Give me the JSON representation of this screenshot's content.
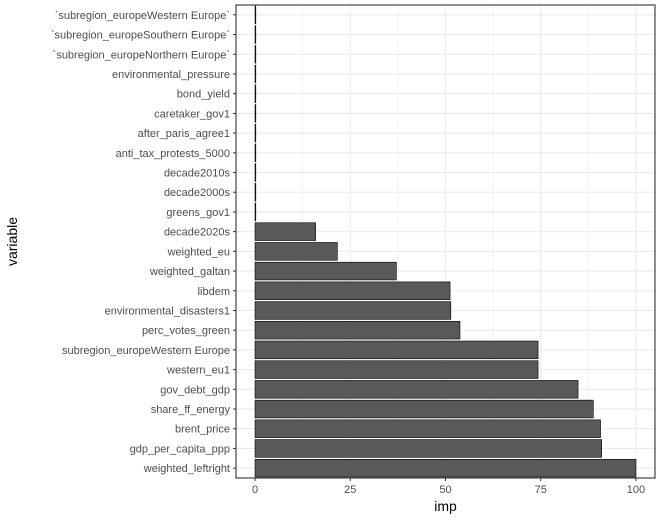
{
  "chart_data": {
    "type": "bar",
    "orientation": "horizontal",
    "xlabel": "imp",
    "ylabel": "variable",
    "xlim": [
      0,
      100
    ],
    "x_ticks": [
      0,
      25,
      50,
      75,
      100
    ],
    "grid": true,
    "legend": "none",
    "colors": {
      "bar_fill": "#595959",
      "bar_stroke": "#000000",
      "grid": "#ebebeb",
      "panel_border": "#333333"
    },
    "categories": [
      "weighted_leftright",
      "gdp_per_capita_ppp",
      "brent_price",
      "share_ff_energy",
      "gov_debt_gdp",
      "western_eu1",
      "subregion_europeWestern Europe",
      "perc_votes_green",
      "environmental_disasters1",
      "libdem",
      "weighted_galtan",
      "weighted_eu",
      "decade2020s",
      "greens_gov1",
      "decade2000s",
      "decade2010s",
      "anti_tax_protests_5000",
      "after_paris_agree1",
      "caretaker_gov1",
      "bond_yield",
      "environmental_pressure",
      "`subregion_europeNorthern Europe`",
      "`subregion_europeSouthern Europe`",
      "`subregion_europeWestern Europe`"
    ],
    "values": [
      100,
      91,
      90.7,
      88.8,
      84.8,
      74.3,
      74.3,
      53.8,
      51.4,
      51.2,
      37.1,
      21.6,
      15.9,
      0.2,
      0.2,
      0.2,
      0.2,
      0.2,
      0.2,
      0.2,
      0.2,
      0.2,
      0.2,
      0.2
    ]
  }
}
